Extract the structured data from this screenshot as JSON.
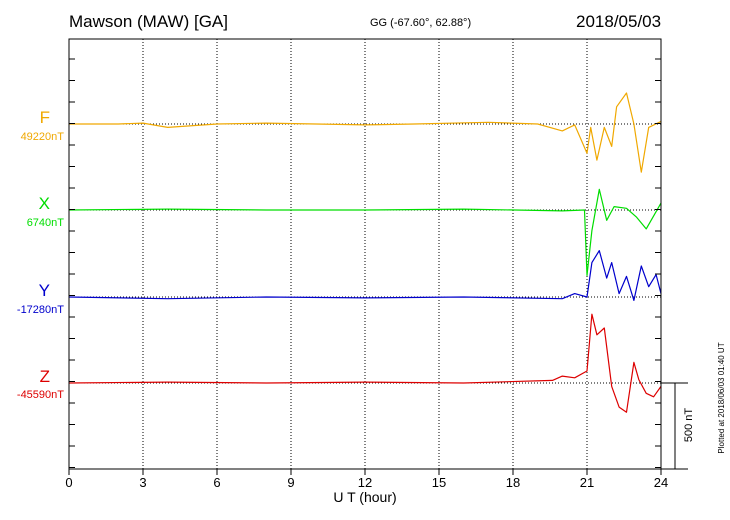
{
  "header": {
    "station": "Mawson (MAW)  [GA]",
    "coords": "GG (-67.60°,  62.88°)",
    "date": "2018/05/03"
  },
  "footer": {
    "plotted_at": "Plotted at 2018/06/03 01:40 UT"
  },
  "chart_data": {
    "type": "line",
    "x_label": "U T (hour)",
    "x_range": [
      0,
      24
    ],
    "x_ticks": [
      "0",
      "3",
      "6",
      "9",
      "12",
      "15",
      "18",
      "21",
      "24"
    ],
    "grid": "vertical dotted lines every 3 hours",
    "scale_bar": {
      "label": "500 nT",
      "value_nT": 500
    },
    "series": [
      {
        "name": "F",
        "baseline_label": "49220nT",
        "baseline_nT": 49220,
        "color": "#f0a800",
        "x": [
          0,
          2,
          3,
          4,
          6,
          8,
          10,
          12,
          14,
          17,
          19,
          20,
          20.5,
          21,
          21.15,
          21.4,
          21.7,
          22,
          22.2,
          22.6,
          22.9,
          23.2,
          23.5,
          24
        ],
        "offset_nT": [
          0,
          0,
          5,
          -20,
          0,
          5,
          0,
          -5,
          0,
          10,
          0,
          -40,
          -5,
          -170,
          -20,
          -210,
          -20,
          -130,
          100,
          180,
          0,
          -280,
          -20,
          15
        ]
      },
      {
        "name": "X",
        "baseline_label": "6740nT",
        "baseline_nT": 6740,
        "color": "#00dd00",
        "x": [
          0,
          4,
          8,
          12,
          16,
          20,
          20.9,
          21,
          21.2,
          21.5,
          21.8,
          22.1,
          22.6,
          23,
          23.4,
          24
        ],
        "offset_nT": [
          0,
          5,
          0,
          0,
          5,
          -5,
          0,
          -380,
          -120,
          120,
          -60,
          20,
          10,
          -40,
          -110,
          40
        ]
      },
      {
        "name": "Y",
        "baseline_label": "-17280nT",
        "baseline_nT": -17280,
        "color": "#0000cc",
        "x": [
          0,
          4,
          8,
          12,
          16,
          20,
          20.5,
          21,
          21.2,
          21.5,
          21.8,
          22,
          22.3,
          22.6,
          22.9,
          23.2,
          23.5,
          23.8,
          24
        ],
        "offset_nT": [
          0,
          -10,
          0,
          -5,
          0,
          -10,
          20,
          0,
          200,
          270,
          110,
          200,
          20,
          120,
          -20,
          180,
          60,
          130,
          20
        ]
      },
      {
        "name": "Z",
        "baseline_label": "-45590nT",
        "baseline_nT": -45590,
        "color": "#dd0000",
        "x": [
          0,
          4,
          8,
          12,
          16,
          19.6,
          20,
          20.5,
          21,
          21.2,
          21.4,
          21.7,
          22,
          22.3,
          22.6,
          22.9,
          23.1,
          23.4,
          23.7,
          24
        ],
        "offset_nT": [
          0,
          5,
          0,
          5,
          0,
          15,
          40,
          30,
          70,
          400,
          280,
          320,
          -20,
          -140,
          -170,
          120,
          20,
          -60,
          -80,
          -20
        ]
      }
    ]
  }
}
